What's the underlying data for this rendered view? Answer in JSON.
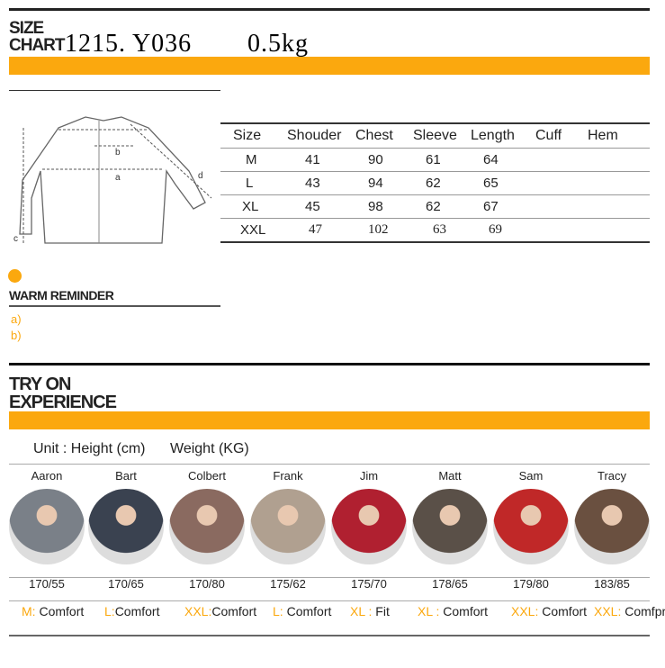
{
  "size_chart": {
    "title_line1": "SIZE",
    "title_line2": "CHART",
    "model": "1215. Y036",
    "weight": "0.5kg"
  },
  "diagram": {
    "labels": [
      "a",
      "b",
      "c",
      "d"
    ]
  },
  "table": {
    "headers": [
      "Size",
      "Shouder",
      "Chest",
      "Sleeve",
      "Length",
      "Cuff",
      "Hem"
    ],
    "rows": [
      [
        "M",
        "41",
        "90",
        "61",
        "64",
        "",
        ""
      ],
      [
        "L",
        "43",
        "94",
        "62",
        "65",
        "",
        ""
      ],
      [
        "XL",
        "45",
        "98",
        "62",
        "67",
        "",
        ""
      ],
      [
        "XXL",
        "47",
        "102",
        "63",
        "69",
        "",
        ""
      ]
    ]
  },
  "reminder": {
    "title": "WARM REMINDER",
    "items": [
      "a)",
      "b)"
    ]
  },
  "try_on": {
    "title_line1": "TRY ON",
    "title_line2": "EXPERIENCE",
    "unit": "Unit : Height (cm)",
    "weight_unit": "Weight (KG)",
    "people": [
      {
        "name": "Aaron",
        "measure": "170/55",
        "size": "M: ",
        "fit": "Comfort",
        "color": "#7a8088"
      },
      {
        "name": "Bart",
        "measure": "170/65",
        "size": "L:",
        "fit": "Comfort",
        "color": "#3a4250"
      },
      {
        "name": "Colbert",
        "measure": "170/80",
        "size": "XXL:",
        "fit": "Comfort",
        "color": "#8a6a60"
      },
      {
        "name": "Frank",
        "measure": "175/62",
        "size": "L: ",
        "fit": "Comfort",
        "color": "#b0a090"
      },
      {
        "name": "Jim",
        "measure": "175/70",
        "size": "XL : ",
        "fit": "Fit",
        "color": "#b02030"
      },
      {
        "name": "Matt",
        "measure": "178/65",
        "size": "XL : ",
        "fit": "Comfort",
        "color": "#5a5048"
      },
      {
        "name": "Sam",
        "measure": "179/80",
        "size": "XXL: ",
        "fit": "Comfort",
        "color": "#c02828"
      },
      {
        "name": "Tracy",
        "measure": "183/85",
        "size": "XXL: ",
        "fit": "Comfprt",
        "color": "#6a5040"
      }
    ]
  },
  "colors": {
    "accent": "#fba80e",
    "text": "#222222"
  }
}
